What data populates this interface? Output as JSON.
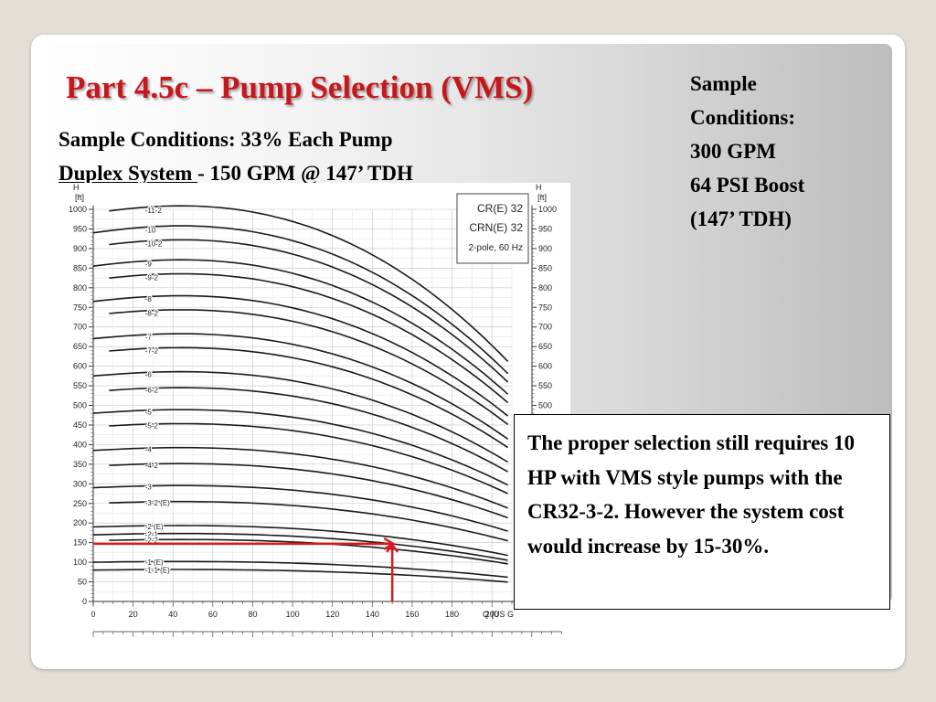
{
  "slide": {
    "title": "Part 4.5c – Pump Selection (VMS)",
    "subtitle_line1": "Sample Conditions: 33% Each Pump",
    "subtitle_line2_underlined": "Duplex System ",
    "subtitle_line2_rest": " - 150 GPM @ 147’ TDH",
    "side_notes": [
      "Sample",
      "Conditions:",
      "300 GPM",
      "64 PSI Boost",
      "(147’ TDH)"
    ],
    "callout_text": "The proper selection still requires 10 HP with VMS style pumps with the CR32-3-2. However the system cost would increase by 15-30%."
  },
  "colors": {
    "title": "#c8161d",
    "marker": "#d9191f",
    "curve": "#1a1a1a"
  },
  "chart_data": {
    "type": "line",
    "title_box": [
      "CR(E) 32",
      "CRN(E) 32",
      "2-pole, 60 Hz"
    ],
    "y_axis": {
      "label_top": "H",
      "label_unit": "[ft]",
      "range": [
        0,
        1000
      ],
      "ticks": [
        0,
        50,
        100,
        150,
        200,
        250,
        300,
        350,
        400,
        450,
        500,
        550,
        600,
        650,
        700,
        750,
        800,
        850,
        900,
        950,
        1000
      ]
    },
    "x_axis": {
      "label": "Q [US G",
      "range": [
        0,
        210
      ],
      "ticks": [
        0,
        20,
        40,
        60,
        80,
        100,
        120,
        140,
        160,
        180,
        200
      ]
    },
    "series": [
      {
        "name": "-11-2",
        "shutoff": 990
      },
      {
        "name": "-10",
        "shutoff": 940
      },
      {
        "name": "-10-2",
        "shutoff": 905
      },
      {
        "name": "-9",
        "shutoff": 855
      },
      {
        "name": "-9-2",
        "shutoff": 820
      },
      {
        "name": "-8",
        "shutoff": 765
      },
      {
        "name": "-8-2",
        "shutoff": 730
      },
      {
        "name": "-7",
        "shutoff": 670
      },
      {
        "name": "-7-2",
        "shutoff": 635
      },
      {
        "name": "-6",
        "shutoff": 575
      },
      {
        "name": "-6-2",
        "shutoff": 535
      },
      {
        "name": "-5",
        "shutoff": 480
      },
      {
        "name": "-5-2",
        "shutoff": 445
      },
      {
        "name": "-4",
        "shutoff": 385
      },
      {
        "name": "-4-2",
        "shutoff": 345
      },
      {
        "name": "-3",
        "shutoff": 290
      },
      {
        "name": "-3-2 (E)",
        "shutoff": 250
      },
      {
        "name": "-2 (E)",
        "shutoff": 190
      },
      {
        "name": "-2-1",
        "shutoff": 170
      },
      {
        "name": "-2-2",
        "shutoff": 155
      },
      {
        "name": "-1 (E)",
        "shutoff": 100
      },
      {
        "name": "-1-1 (E)",
        "shutoff": 80
      }
    ],
    "duty_point": {
      "flow": 150,
      "head": 147
    }
  }
}
